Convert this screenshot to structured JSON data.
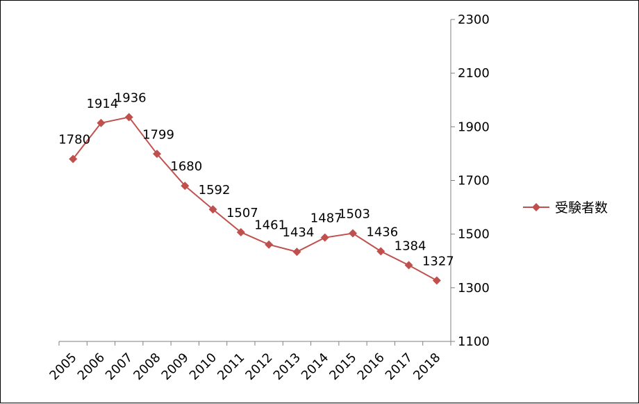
{
  "chart_data": {
    "type": "line",
    "categories": [
      "2005",
      "2006",
      "2007",
      "2008",
      "2009",
      "2010",
      "2011",
      "2012",
      "2013",
      "2014",
      "2015",
      "2016",
      "2017",
      "2018"
    ],
    "series": [
      {
        "name": "受験者数",
        "values": [
          1780,
          1914,
          1936,
          1799,
          1680,
          1592,
          1507,
          1461,
          1434,
          1487,
          1503,
          1436,
          1384,
          1327
        ],
        "color": "#C0504D",
        "marker": "diamond"
      }
    ],
    "title": "",
    "xlabel": "",
    "ylabel": "",
    "ylim": [
      1100,
      2300
    ],
    "yticks": [
      1100,
      1300,
      1500,
      1700,
      1900,
      2100,
      2300
    ],
    "y_axis_position": "right",
    "x_tick_rotation": "diagonal",
    "grid": false,
    "legend_position": "right"
  }
}
